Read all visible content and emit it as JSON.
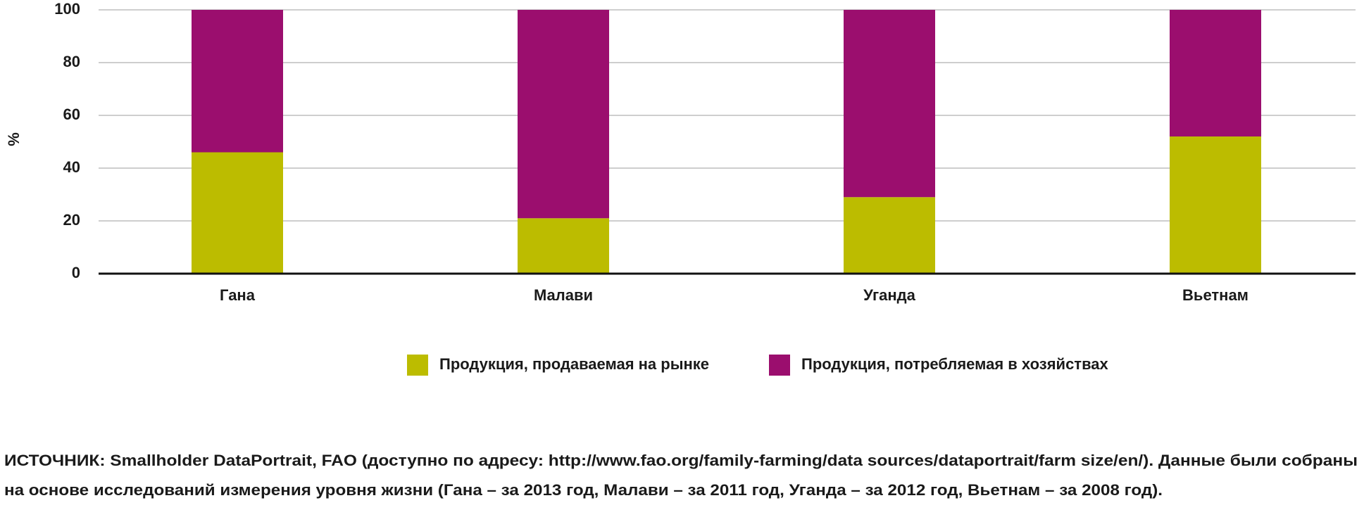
{
  "chart_data": {
    "type": "stacked_bar",
    "ylabel": "%",
    "categories": [
      "Гана",
      "Малави",
      "Уганда",
      "Вьетнам"
    ],
    "series": [
      {
        "name": "Продукция, продаваемая на рынке",
        "color": "#bcbc00",
        "values": [
          46,
          21,
          29,
          52
        ]
      },
      {
        "name": "Продукция, потребляемая в хозяйствах",
        "color": "#9b0e6e",
        "values": [
          54,
          79,
          71,
          48
        ]
      }
    ],
    "ylim": [
      0,
      100
    ],
    "yticks": [
      0,
      20,
      40,
      60,
      80,
      100
    ],
    "grid": true,
    "legend": "bottom",
    "source": [
      "ИСТОЧНИК: Smallholder DataPortrait, FAO (доступно по адресу: http://www.fao.org/family-farming/data sources/dataportrait/farm size/en/). Данные были собраны",
      "на основе исследований измерения уровня жизни (Гана – за 2013 год, Малави – за 2011 год, Уганда – за 2012 год, Вьетнам – за 2008 год)."
    ]
  }
}
